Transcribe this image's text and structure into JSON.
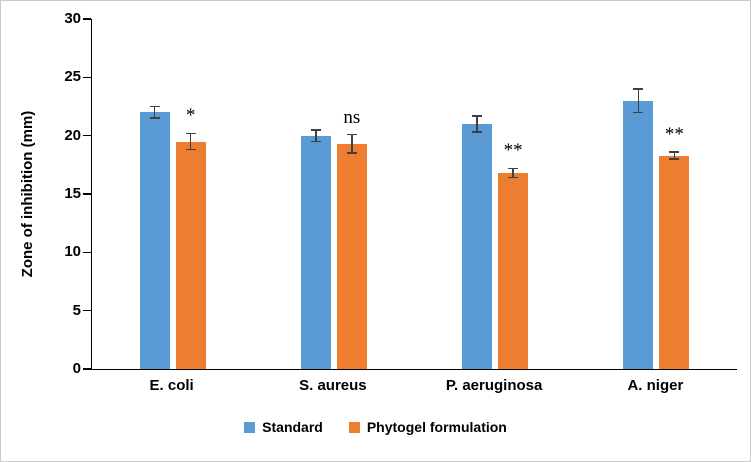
{
  "chart_data": {
    "type": "bar",
    "title": "",
    "xlabel": "",
    "ylabel": "Zone of inhibition (mm)",
    "ylim": [
      0,
      30
    ],
    "ytick_step": 5,
    "grid": false,
    "legend_position": "bottom",
    "categories": [
      "E. coli",
      "S. aureus",
      "P. aeruginosa",
      "A. niger"
    ],
    "series": [
      {
        "name": "Standard",
        "color": "#5B9BD5",
        "values": [
          22,
          20,
          21,
          23
        ],
        "errors": [
          0.5,
          0.5,
          0.7,
          1.0
        ]
      },
      {
        "name": "Phytogel formulation",
        "color": "#ED7D31",
        "values": [
          19.5,
          19.3,
          16.8,
          18.3
        ],
        "errors": [
          0.7,
          0.8,
          0.4,
          0.3
        ]
      }
    ],
    "annotations": [
      "*",
      "ns",
      "**",
      "**"
    ],
    "error_bar_color": "#404040",
    "axis_color": "#000000"
  }
}
